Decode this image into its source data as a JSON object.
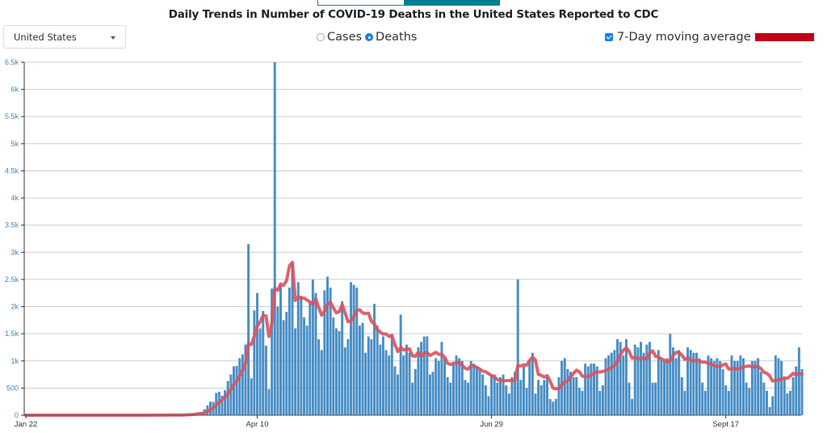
{
  "header": {
    "tabs": [
      {
        "name": "tab-left",
        "active": false
      },
      {
        "name": "tab-right",
        "active": true
      }
    ],
    "title": "Daily Trends in Number of COVID-19 Deaths in the United States Reported to CDC"
  },
  "controls": {
    "location_select": {
      "value": "United States"
    },
    "metric_radios": [
      {
        "label": "Cases",
        "checked": false
      },
      {
        "label": "Deaths",
        "checked": true
      }
    ],
    "moving_average": {
      "label": "7-Day moving average",
      "checked": true
    }
  },
  "colors": {
    "bar": "#4a8fc6",
    "moving_average": "#c0001a",
    "moving_average_line": "#d9525e",
    "axis_label": "#3a87c8",
    "grid": "#cccccc"
  },
  "chart_data": {
    "type": "bar",
    "title": "Daily Trends in Number of COVID-19 Deaths in the United States Reported to CDC",
    "xlabel": "",
    "ylabel": "",
    "start_date": "Jan 22",
    "end_date": "Sept 17",
    "ylim": [
      0,
      6500
    ],
    "grid": true,
    "y_ticks": [
      {
        "value": 0,
        "label": "0"
      },
      {
        "value": 500,
        "label": "500"
      },
      {
        "value": 1000,
        "label": "1k"
      },
      {
        "value": 1500,
        "label": "1.5k"
      },
      {
        "value": 2000,
        "label": "2k"
      },
      {
        "value": 2500,
        "label": "2.5k"
      },
      {
        "value": 3000,
        "label": "3k"
      },
      {
        "value": 3500,
        "label": "3.5k"
      },
      {
        "value": 4000,
        "label": "4k"
      },
      {
        "value": 4500,
        "label": "4.5k"
      },
      {
        "value": 5000,
        "label": "5k"
      },
      {
        "value": 5500,
        "label": "5.5k"
      },
      {
        "value": 6000,
        "label": "6k"
      },
      {
        "value": 6500,
        "label": "6.5k"
      }
    ],
    "x_ticks": [
      {
        "day": 0,
        "label": "Jan 22"
      },
      {
        "day": 79,
        "label": "Apr 10"
      },
      {
        "day": 159,
        "label": "Jun 29"
      },
      {
        "day": 239,
        "label": "Sept 17"
      }
    ],
    "legend": [
      {
        "name": "7-Day moving average",
        "position": "top-right"
      }
    ],
    "series": [
      {
        "name": "Daily deaths",
        "kind": "bar",
        "values": [
          0,
          0,
          0,
          0,
          0,
          0,
          0,
          0,
          0,
          0,
          0,
          0,
          0,
          0,
          0,
          0,
          0,
          0,
          0,
          0,
          0,
          0,
          0,
          0,
          0,
          0,
          0,
          0,
          0,
          0,
          0,
          0,
          0,
          0,
          0,
          0,
          0,
          0,
          1,
          0,
          2,
          1,
          2,
          3,
          1,
          4,
          1,
          2,
          3,
          2,
          5,
          4,
          8,
          9,
          11,
          14,
          20,
          23,
          40,
          56,
          50,
          110,
          180,
          250,
          245,
          410,
          430,
          360,
          460,
          630,
          750,
          900,
          910,
          1050,
          1120,
          1300,
          3150,
          680,
          1930,
          2250,
          1600,
          1920,
          1280,
          480,
          2330,
          6500,
          2000,
          2400,
          1750,
          1900,
          2350,
          2800,
          1600,
          2450,
          2200,
          1800,
          1650,
          2100,
          2500,
          2250,
          1400,
          1200,
          2300,
          2550,
          2350,
          1800,
          1600,
          1550,
          2100,
          1250,
          1400,
          2450,
          2400,
          2350,
          1650,
          1700,
          1150,
          1450,
          1400,
          2050,
          1650,
          1300,
          1450,
          1200,
          1100,
          1500,
          900,
          750,
          1850,
          1100,
          1300,
          1150,
          600,
          850,
          1250,
          1350,
          1450,
          1450,
          750,
          800,
          1050,
          1000,
          1350,
          1050,
          700,
          600,
          950,
          1100,
          1050,
          1000,
          650,
          600,
          1000,
          950,
          900,
          850,
          750,
          550,
          350,
          750,
          750,
          600,
          700,
          750,
          550,
          400,
          700,
          800,
          2500,
          650,
          900,
          500,
          1000,
          1150,
          400,
          650,
          550,
          650,
          700,
          300,
          250,
          300,
          700,
          1000,
          1050,
          850,
          800,
          700,
          700,
          500,
          450,
          950,
          900,
          950,
          950,
          900,
          450,
          550,
          1050,
          1100,
          1150,
          1200,
          1400,
          1350,
          1100,
          1400,
          600,
          300,
          1300,
          1250,
          1350,
          1150,
          1300,
          1350,
          600,
          600,
          1200,
          1050,
          1000,
          1050,
          1500,
          1250,
          1050,
          1200,
          700,
          450,
          1250,
          1200,
          1150,
          1150,
          1050,
          600,
          450,
          1100,
          1050,
          1000,
          1050,
          1000,
          850,
          550,
          450,
          1100,
          1000,
          1000,
          1100,
          1050,
          600,
          500,
          1000,
          1000,
          1050,
          800,
          600,
          450,
          150,
          350,
          1100,
          1050,
          1000,
          700,
          400,
          450,
          700,
          900,
          1250,
          850
        ]
      },
      {
        "name": "7-Day moving average",
        "kind": "line",
        "values": []
      }
    ]
  }
}
